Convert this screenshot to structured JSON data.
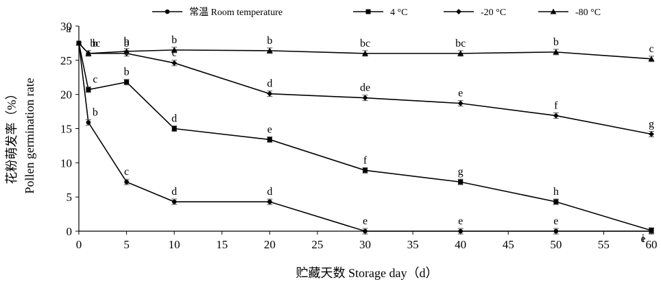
{
  "chart_data": {
    "type": "line",
    "xlabel": "贮藏天数 Storage day（d）",
    "ylabel_cn": "花粉萌发率（%）",
    "ylabel_en": "Pollen germination rate",
    "xlim": [
      0,
      60
    ],
    "ylim": [
      0,
      30
    ],
    "x_ticks": [
      "0",
      "5",
      "10",
      "15",
      "20",
      "25",
      "30",
      "35",
      "40",
      "45",
      "50",
      "55",
      "60"
    ],
    "y_ticks": [
      "0",
      "5",
      "10",
      "15",
      "20",
      "25",
      "30"
    ],
    "grid": false,
    "legend_position": "top",
    "series": [
      {
        "name": "常温 Room temperature",
        "marker": "circle",
        "x": [
          0,
          1,
          5,
          10,
          20,
          30,
          40,
          50,
          60
        ],
        "y": [
          27.5,
          15.9,
          7.2,
          4.3,
          4.3,
          0.0,
          0.0,
          0.0,
          0.0
        ],
        "labels": [
          "a",
          "b",
          "c",
          "d",
          "d",
          "e",
          "e",
          "e",
          "e"
        ]
      },
      {
        "name": "4 °C",
        "marker": "square",
        "x": [
          0,
          1,
          5,
          10,
          20,
          30,
          40,
          50,
          60
        ],
        "y": [
          27.5,
          20.7,
          21.8,
          15.0,
          13.4,
          8.9,
          7.2,
          4.3,
          0.1
        ],
        "labels": [
          "",
          "c",
          "b",
          "d",
          "e",
          "f",
          "g",
          "h",
          "i"
        ]
      },
      {
        "name": "-20 °C",
        "marker": "diamond",
        "x": [
          0,
          1,
          5,
          10,
          20,
          30,
          40,
          50,
          60
        ],
        "y": [
          27.5,
          26.0,
          26.0,
          24.6,
          20.1,
          19.5,
          18.7,
          16.9,
          14.2
        ],
        "labels": [
          "",
          "b",
          "b",
          "c",
          "d",
          "de",
          "e",
          "f",
          "g"
        ]
      },
      {
        "name": "-80 °C",
        "marker": "triangle",
        "x": [
          0,
          1,
          5,
          10,
          20,
          30,
          40,
          50,
          60
        ],
        "y": [
          27.5,
          26.0,
          26.3,
          26.5,
          26.4,
          26.0,
          26.0,
          26.2,
          25.2
        ],
        "labels": [
          "",
          "bc",
          "b",
          "b",
          "b",
          "bc",
          "bc",
          "b",
          "c"
        ]
      }
    ]
  }
}
